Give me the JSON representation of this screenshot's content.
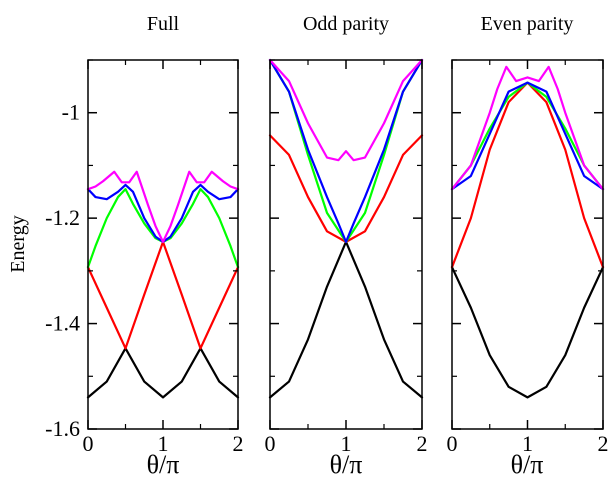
{
  "chart_data": [
    {
      "type": "line",
      "title": "Full",
      "xlabel": "θ/π",
      "ylabel": "Energy",
      "xlim": [
        0,
        2
      ],
      "ylim": [
        -1.6,
        -0.9
      ],
      "x_ticks": [
        "0",
        "1",
        "2"
      ],
      "y_ticks": [
        "-1.6",
        "-1.4",
        "-1.2",
        "-1"
      ],
      "series": [
        {
          "color": "#000000",
          "x": [
            0,
            0.25,
            0.5,
            0.75,
            1.0,
            1.25,
            1.5,
            1.75,
            2.0
          ],
          "y": [
            -1.54,
            -1.51,
            -1.447,
            -1.51,
            -1.54,
            -1.51,
            -1.447,
            -1.51,
            -1.54
          ]
        },
        {
          "color": "#ff0000",
          "x": [
            0,
            0.25,
            0.5,
            0.75,
            1.0,
            1.25,
            1.5,
            1.75,
            2.0
          ],
          "y": [
            -1.293,
            -1.37,
            -1.447,
            -1.345,
            -1.245,
            -1.345,
            -1.447,
            -1.37,
            -1.293
          ]
        },
        {
          "color": "#00ff00",
          "x": [
            0,
            0.1,
            0.25,
            0.4,
            0.5,
            0.6,
            0.75,
            0.9,
            1.0,
            1.1,
            1.25,
            1.4,
            1.5,
            1.6,
            1.75,
            1.9,
            2.0
          ],
          "y": [
            -1.293,
            -1.253,
            -1.2,
            -1.16,
            -1.145,
            -1.173,
            -1.21,
            -1.238,
            -1.245,
            -1.238,
            -1.21,
            -1.173,
            -1.145,
            -1.16,
            -1.2,
            -1.253,
            -1.293
          ]
        },
        {
          "color": "#0000ff",
          "x": [
            0,
            0.1,
            0.25,
            0.4,
            0.5,
            0.6,
            0.75,
            0.9,
            1.0,
            1.1,
            1.25,
            1.4,
            1.5,
            1.6,
            1.75,
            1.9,
            2.0
          ],
          "y": [
            -1.145,
            -1.16,
            -1.164,
            -1.15,
            -1.137,
            -1.15,
            -1.2,
            -1.235,
            -1.245,
            -1.235,
            -1.2,
            -1.15,
            -1.137,
            -1.15,
            -1.164,
            -1.16,
            -1.145
          ]
        },
        {
          "color": "#ff00ff",
          "x": [
            0,
            0.1,
            0.2,
            0.35,
            0.45,
            0.55,
            0.65,
            0.8,
            0.9,
            1.0,
            1.1,
            1.2,
            1.35,
            1.45,
            1.55,
            1.65,
            1.8,
            1.9,
            2.0
          ],
          "y": [
            -1.145,
            -1.14,
            -1.13,
            -1.112,
            -1.132,
            -1.132,
            -1.112,
            -1.175,
            -1.215,
            -1.245,
            -1.215,
            -1.175,
            -1.112,
            -1.132,
            -1.132,
            -1.112,
            -1.13,
            -1.14,
            -1.145
          ]
        }
      ]
    },
    {
      "type": "line",
      "title": "Odd parity",
      "xlabel": "θ/π",
      "ylabel": "",
      "xlim": [
        0,
        2
      ],
      "ylim": [
        -1.6,
        -0.9
      ],
      "x_ticks": [
        "0",
        "1",
        "2"
      ],
      "y_ticks": [],
      "series": [
        {
          "color": "#000000",
          "x": [
            0,
            0.25,
            0.5,
            0.75,
            1.0,
            1.25,
            1.5,
            1.75,
            2.0
          ],
          "y": [
            -1.54,
            -1.51,
            -1.43,
            -1.33,
            -1.245,
            -1.33,
            -1.43,
            -1.51,
            -1.54
          ]
        },
        {
          "color": "#ff0000",
          "x": [
            0,
            0.25,
            0.5,
            0.75,
            1.0,
            1.25,
            1.5,
            1.75,
            2.0
          ],
          "y": [
            -1.043,
            -1.08,
            -1.16,
            -1.225,
            -1.245,
            -1.225,
            -1.16,
            -1.08,
            -1.043
          ]
        },
        {
          "color": "#00ff00",
          "x": [
            0,
            0.25,
            0.5,
            0.75,
            1.0,
            1.25,
            1.5,
            1.75,
            2.0
          ],
          "y": [
            -0.9,
            -0.96,
            -1.08,
            -1.19,
            -1.245,
            -1.19,
            -1.08,
            -0.96,
            -0.9
          ]
        },
        {
          "color": "#0000ff",
          "x": [
            0,
            0.25,
            0.5,
            0.75,
            0.9,
            1.0,
            1.1,
            1.25,
            1.5,
            1.75,
            2.0
          ],
          "y": [
            -0.9,
            -0.96,
            -1.07,
            -1.16,
            -1.21,
            -1.245,
            -1.21,
            -1.16,
            -1.07,
            -0.96,
            -0.9
          ]
        },
        {
          "color": "#ff00ff",
          "x": [
            0,
            0.25,
            0.5,
            0.75,
            0.9,
            1.0,
            1.1,
            1.25,
            1.5,
            1.75,
            2.0
          ],
          "y": [
            -0.9,
            -0.94,
            -1.02,
            -1.085,
            -1.09,
            -1.073,
            -1.09,
            -1.085,
            -1.02,
            -0.94,
            -0.9
          ]
        }
      ]
    },
    {
      "type": "line",
      "title": "Even parity",
      "xlabel": "θ/π",
      "ylabel": "",
      "xlim": [
        0,
        2
      ],
      "ylim": [
        -1.6,
        -0.9
      ],
      "x_ticks": [
        "0",
        "1",
        "2"
      ],
      "y_ticks": [],
      "series": [
        {
          "color": "#000000",
          "x": [
            0,
            0.25,
            0.5,
            0.75,
            1.0,
            1.25,
            1.5,
            1.75,
            2.0
          ],
          "y": [
            -1.293,
            -1.37,
            -1.46,
            -1.52,
            -1.54,
            -1.52,
            -1.46,
            -1.37,
            -1.293
          ]
        },
        {
          "color": "#ff0000",
          "x": [
            0,
            0.25,
            0.5,
            0.75,
            1.0,
            1.25,
            1.5,
            1.75,
            2.0
          ],
          "y": [
            -1.293,
            -1.2,
            -1.07,
            -0.98,
            -0.943,
            -0.98,
            -1.07,
            -1.2,
            -1.293
          ]
        },
        {
          "color": "#00ff00",
          "x": [
            0,
            0.25,
            0.5,
            0.75,
            1.0,
            1.25,
            1.5,
            1.75,
            2.0
          ],
          "y": [
            -1.145,
            -1.1,
            -1.03,
            -0.97,
            -0.943,
            -0.97,
            -1.03,
            -1.1,
            -1.145
          ]
        },
        {
          "color": "#0000ff",
          "x": [
            0,
            0.25,
            0.5,
            0.75,
            1.0,
            1.25,
            1.5,
            1.75,
            2.0
          ],
          "y": [
            -1.145,
            -1.12,
            -1.04,
            -0.96,
            -0.943,
            -0.96,
            -1.04,
            -1.12,
            -1.145
          ]
        },
        {
          "color": "#ff00ff",
          "x": [
            0,
            0.25,
            0.5,
            0.6,
            0.72,
            0.85,
            1.0,
            1.15,
            1.28,
            1.4,
            1.5,
            1.75,
            2.0
          ],
          "y": [
            -1.145,
            -1.1,
            -1.0,
            -0.955,
            -0.913,
            -0.94,
            -0.933,
            -0.94,
            -0.913,
            -0.955,
            -1.0,
            -1.1,
            -1.145
          ]
        }
      ]
    }
  ]
}
